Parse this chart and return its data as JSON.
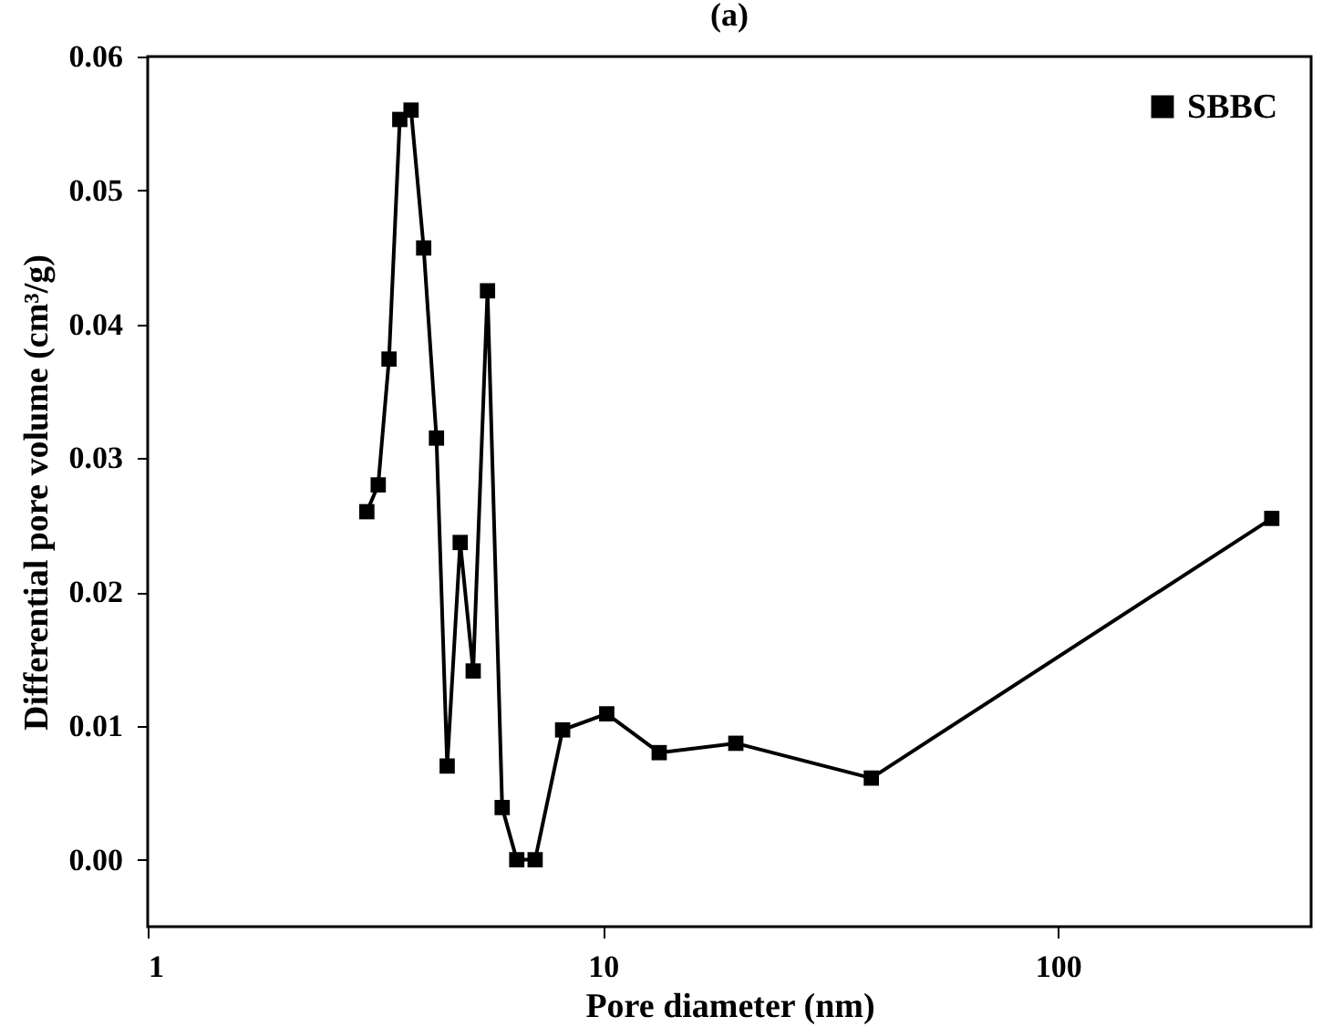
{
  "chart_data": {
    "type": "line",
    "title": "(a)",
    "xlabel": "Pore diameter (nm)",
    "ylabel": "Differential pore volume (cm³/g)",
    "log": "x",
    "xlim": [
      1,
      360
    ],
    "xticks": [
      1,
      10,
      100
    ],
    "ylim": [
      -0.005,
      0.06
    ],
    "yticks": [
      {
        "value": 0,
        "label": "0.00"
      },
      0.01,
      0.02,
      0.03,
      0.04,
      0.05,
      0.06
    ],
    "legend": "top right",
    "marker": "square",
    "line_style": "solid",
    "series": [
      {
        "name": "SBBC",
        "color": "#000000",
        "x": [
          3.03,
          3.21,
          3.39,
          3.58,
          3.79,
          4.04,
          4.31,
          4.55,
          4.86,
          5.19,
          5.58,
          6.01,
          6.47,
          7.1,
          8.16,
          10.2,
          13.3,
          19.6,
          38.9,
          295
        ],
        "values": [
          0.026,
          0.028,
          0.0374,
          0.0553,
          0.056,
          0.0457,
          0.0315,
          0.007,
          0.0237,
          0.0141,
          0.0425,
          0.0039,
          0,
          0,
          0.0097,
          0.0109,
          0.008,
          0.0087,
          0.0061,
          0.0255
        ]
      }
    ]
  }
}
